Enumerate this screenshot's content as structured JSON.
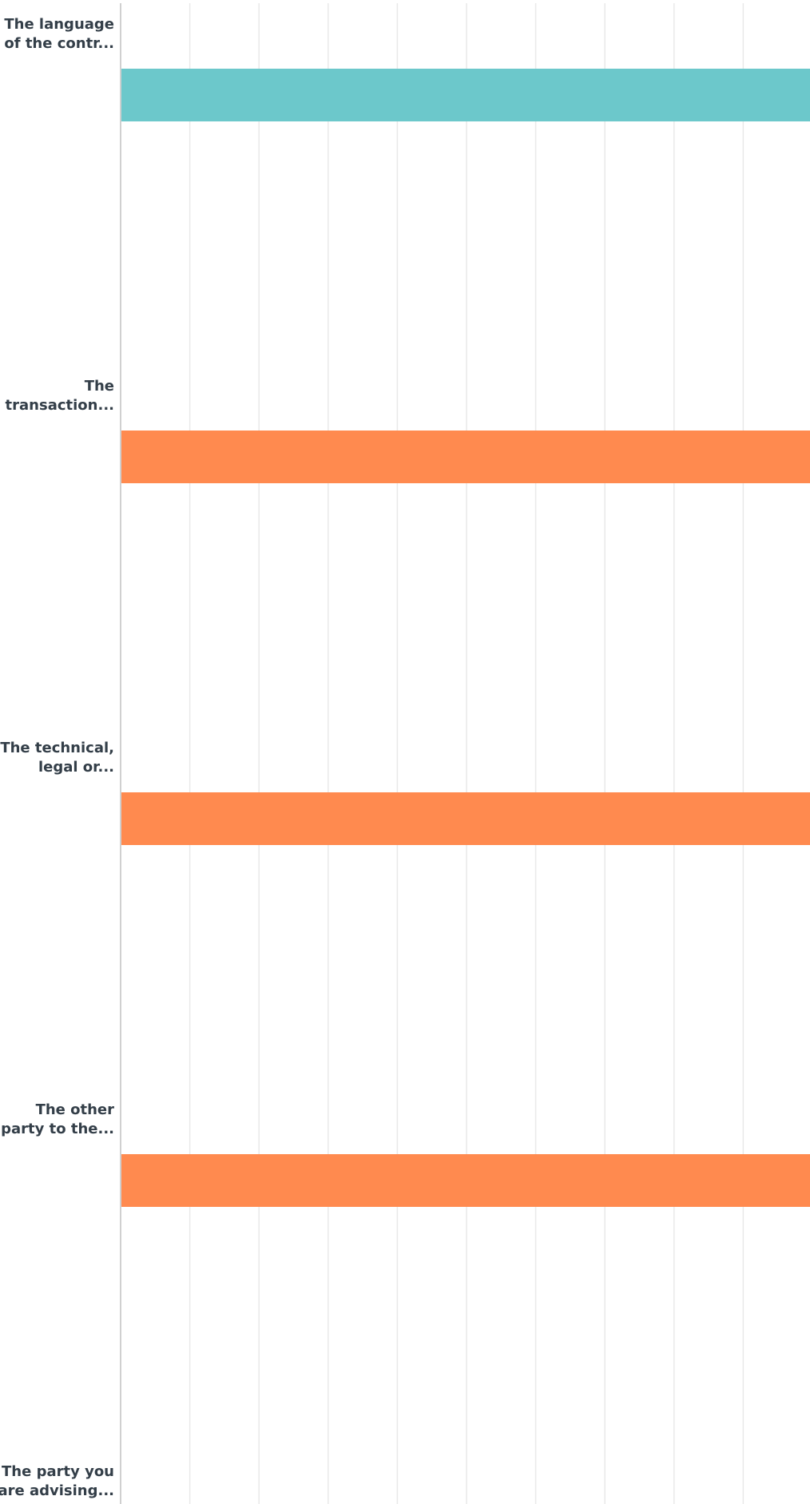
{
  "chart_data": {
    "type": "bar",
    "orientation": "horizontal",
    "categories": [
      [
        "The language",
        "of the contr..."
      ],
      [
        "The",
        "transaction..."
      ],
      [
        "The technical,",
        "legal or..."
      ],
      [
        "The other",
        "party to the..."
      ],
      [
        "The party you",
        "are advising..."
      ]
    ],
    "category_names": [
      "The language of the contr...",
      "The transaction...",
      "The technical, legal or...",
      "The other party to the...",
      "The party you are advising..."
    ],
    "series": [
      {
        "values": [
          1,
          1,
          1,
          1,
          0
        ]
      }
    ],
    "bar_colors": [
      "#6cc8cb",
      "#ff8a4f",
      "#ff8a4f",
      "#ff8a4f",
      "#ff8a4f"
    ],
    "xlim": [
      0,
      1
    ],
    "x_gridlines": 10,
    "grid": true,
    "legend": "none",
    "xlabel": "",
    "ylabel": "",
    "title": ""
  },
  "colors": {
    "grid": "#e9e9e9",
    "axis": "#d0d0d0",
    "label": "#333e48",
    "background": "#ffffff"
  }
}
